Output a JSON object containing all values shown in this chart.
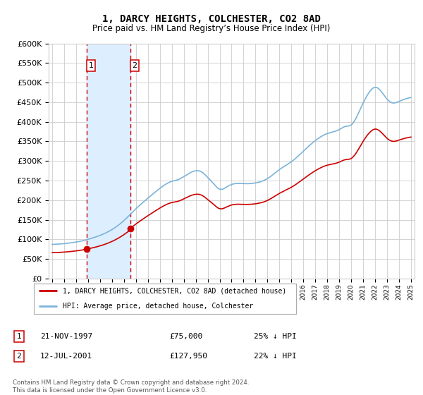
{
  "title": "1, DARCY HEIGHTS, COLCHESTER, CO2 8AD",
  "subtitle": "Price paid vs. HM Land Registry’s House Price Index (HPI)",
  "legend_line1": "1, DARCY HEIGHTS, COLCHESTER, CO2 8AD (detached house)",
  "legend_line2": "HPI: Average price, detached house, Colchester",
  "transaction1_date": "21-NOV-1997",
  "transaction1_price": 75000,
  "transaction1_pct": "25% ↓ HPI",
  "transaction1_year": 1997.89,
  "transaction2_date": "12-JUL-2001",
  "transaction2_price": 127950,
  "transaction2_pct": "22% ↓ HPI",
  "transaction2_year": 2001.53,
  "footer": "Contains HM Land Registry data © Crown copyright and database right 2024.\nThis data is licensed under the Open Government Licence v3.0.",
  "ylim": [
    0,
    600000
  ],
  "xlim": [
    1994.7,
    2025.3
  ],
  "red_color": "#cc0000",
  "blue_color": "#7bb3d9",
  "shade_color": "#ddeeff",
  "grid_color": "#cccccc",
  "background_color": "#ffffff"
}
